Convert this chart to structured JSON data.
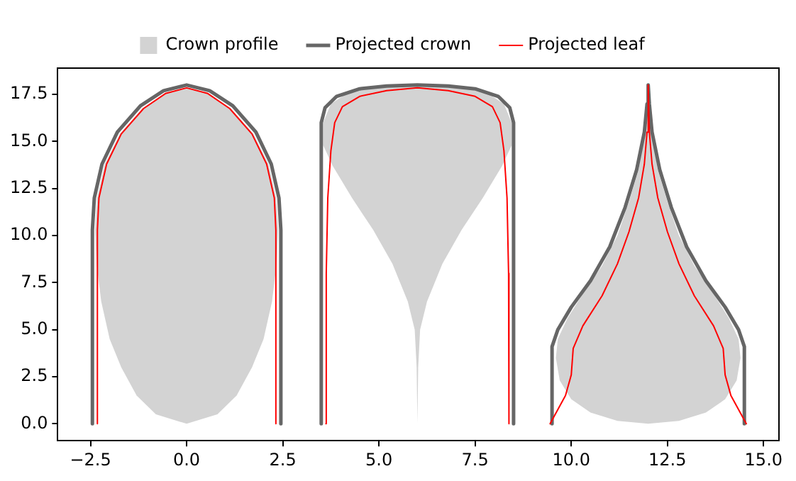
{
  "chart_data": {
    "type": "line",
    "legend": "top",
    "grid": false,
    "marker": "none",
    "line_style": "solid",
    "xlim": [
      -3.35,
      15.4
    ],
    "xticks": [
      {
        "value": -2.5,
        "label": "−2.5"
      },
      {
        "value": 0,
        "label": "0.0"
      },
      {
        "value": 2.5,
        "label": "2.5"
      },
      {
        "value": 5,
        "label": "5.0"
      },
      {
        "value": 7.5,
        "label": "7.5"
      },
      {
        "value": 10,
        "label": "10.0"
      },
      {
        "value": 12.5,
        "label": "12.5"
      },
      {
        "value": 15,
        "label": "15.0"
      }
    ],
    "ylim": [
      -0.9,
      18.9
    ],
    "yticks": [
      {
        "value": 0,
        "label": "0.0"
      },
      {
        "value": 2.5,
        "label": "2.5"
      },
      {
        "value": 5,
        "label": "5.0"
      },
      {
        "value": 7.5,
        "label": "7.5"
      },
      {
        "value": 10,
        "label": "10.0"
      },
      {
        "value": 12.5,
        "label": "12.5"
      },
      {
        "value": 15,
        "label": "15.0"
      },
      {
        "value": 17.5,
        "label": "17.5"
      }
    ],
    "series": [
      {
        "type": "area",
        "name": "Crown profile",
        "color": "#d3d3d3",
        "x": [
          0,
          -0.8,
          -1.3,
          -1.7,
          -2.0,
          -2.22,
          -2.34,
          -2.38,
          -2.33,
          -2.13,
          -1.74,
          -1.15,
          -0.57,
          0,
          0.57,
          1.15,
          1.74,
          2.13,
          2.33,
          2.38,
          2.34,
          2.22,
          2.0,
          1.7,
          1.3,
          0.8,
          0
        ],
        "values": [
          0,
          0.5,
          1.5,
          3,
          4.5,
          6.5,
          8.5,
          10.3,
          12,
          13.8,
          15.4,
          16.75,
          17.55,
          17.85,
          17.55,
          16.75,
          15.4,
          13.8,
          12,
          10.3,
          8.5,
          6.5,
          4.5,
          3,
          1.5,
          0.5,
          0
        ]
      },
      {
        "type": "area",
        "color": "#d3d3d3",
        "x": [
          6,
          5.98,
          5.93,
          5.75,
          5.35,
          4.85,
          4.3,
          3.8,
          3.55,
          3.55,
          3.75,
          4.2,
          5,
          6,
          7,
          7.8,
          8.25,
          8.45,
          8.45,
          8.2,
          7.7,
          7.15,
          6.65,
          6.25,
          6.07,
          6.02,
          6
        ],
        "values": [
          0,
          3,
          5,
          6.5,
          8.5,
          10.3,
          12,
          13.7,
          14.8,
          16,
          17,
          17.6,
          17.9,
          18,
          17.9,
          17.6,
          17,
          16,
          14.8,
          13.7,
          12,
          10.3,
          8.5,
          6.5,
          5,
          3,
          0
        ]
      },
      {
        "type": "area",
        "color": "#d3d3d3",
        "x": [
          12,
          11.2,
          10.5,
          10,
          9.7,
          9.6,
          9.65,
          9.9,
          10.3,
          10.8,
          11.2,
          11.5,
          11.75,
          11.9,
          12,
          12.1,
          12.25,
          12.5,
          12.8,
          13.2,
          13.7,
          14.1,
          14.35,
          14.4,
          14.3,
          14,
          13.5,
          12.8,
          12
        ],
        "values": [
          0,
          0.15,
          0.6,
          1.3,
          2.3,
          3.5,
          4.5,
          5.6,
          6.9,
          8.4,
          10,
          11.8,
          13.5,
          15.3,
          17.5,
          15.3,
          13.5,
          11.8,
          10,
          8.4,
          6.9,
          5.6,
          4.5,
          3.5,
          2.3,
          1.3,
          0.6,
          0.15,
          0
        ]
      },
      {
        "name": "Projected crown",
        "color": "#666666",
        "x": [
          -2.45,
          -2.45,
          -2.4,
          -2.2,
          -1.8,
          -1.2,
          -0.6,
          0,
          0.6,
          1.2,
          1.8,
          2.2,
          2.4,
          2.45,
          2.45,
          null,
          3.5,
          3.5,
          3.6,
          3.9,
          4.5,
          5.2,
          6,
          6.8,
          7.5,
          8.1,
          8.4,
          8.5,
          8.5,
          null,
          9.5,
          9.5,
          9.65,
          10.0,
          10.5,
          11.0,
          11.4,
          11.7,
          11.9,
          11.97,
          12,
          12.03,
          12.1,
          12.3,
          12.6,
          13.0,
          13.5,
          14.0,
          14.35,
          14.5,
          14.5
        ],
        "values": [
          0,
          10.3,
          12,
          13.8,
          15.5,
          16.9,
          17.7,
          18,
          17.7,
          16.9,
          15.5,
          13.8,
          12,
          10.3,
          0,
          null,
          0,
          16,
          16.8,
          17.4,
          17.8,
          17.95,
          18,
          17.95,
          17.8,
          17.4,
          16.8,
          16,
          0,
          null,
          0,
          4.1,
          5,
          6.2,
          7.6,
          9.4,
          11.5,
          13.5,
          15.5,
          17,
          18,
          17,
          15.5,
          13.5,
          11.5,
          9.4,
          7.6,
          6.2,
          5,
          4.1,
          0
        ]
      },
      {
        "name": "Projected leaf",
        "color": "#ff0000",
        "x": [
          -2.32,
          -2.32,
          -2.28,
          -2.08,
          -1.7,
          -1.12,
          -0.55,
          0,
          0.55,
          1.12,
          1.7,
          2.08,
          2.28,
          2.32,
          2.32,
          null,
          3.62,
          3.63,
          3.67,
          3.75,
          3.85,
          4.05,
          4.5,
          5.2,
          6,
          6.8,
          7.5,
          7.95,
          8.15,
          8.25,
          8.33,
          8.37,
          8.38,
          null,
          9.45,
          9.85,
          10.0,
          10.05,
          10.3,
          10.8,
          11.2,
          11.5,
          11.75,
          11.9,
          11.97,
          12,
          12.03,
          12.1,
          12.25,
          12.5,
          12.8,
          13.2,
          13.7,
          13.95,
          14.0,
          14.15,
          14.55
        ],
        "values": [
          0,
          10.3,
          12,
          13.8,
          15.4,
          16.75,
          17.55,
          17.85,
          17.55,
          16.75,
          15.4,
          13.8,
          12,
          10.3,
          0,
          null,
          0,
          8,
          12,
          14.5,
          16,
          16.85,
          17.4,
          17.7,
          17.85,
          17.7,
          17.4,
          16.85,
          16,
          14.5,
          12,
          8,
          0,
          null,
          0,
          1.5,
          2.6,
          4,
          5.2,
          6.8,
          8.5,
          10.2,
          12,
          13.8,
          15.5,
          18,
          15.5,
          13.8,
          12,
          10.2,
          8.5,
          6.8,
          5.2,
          4,
          2.6,
          1.5,
          0
        ]
      }
    ]
  }
}
